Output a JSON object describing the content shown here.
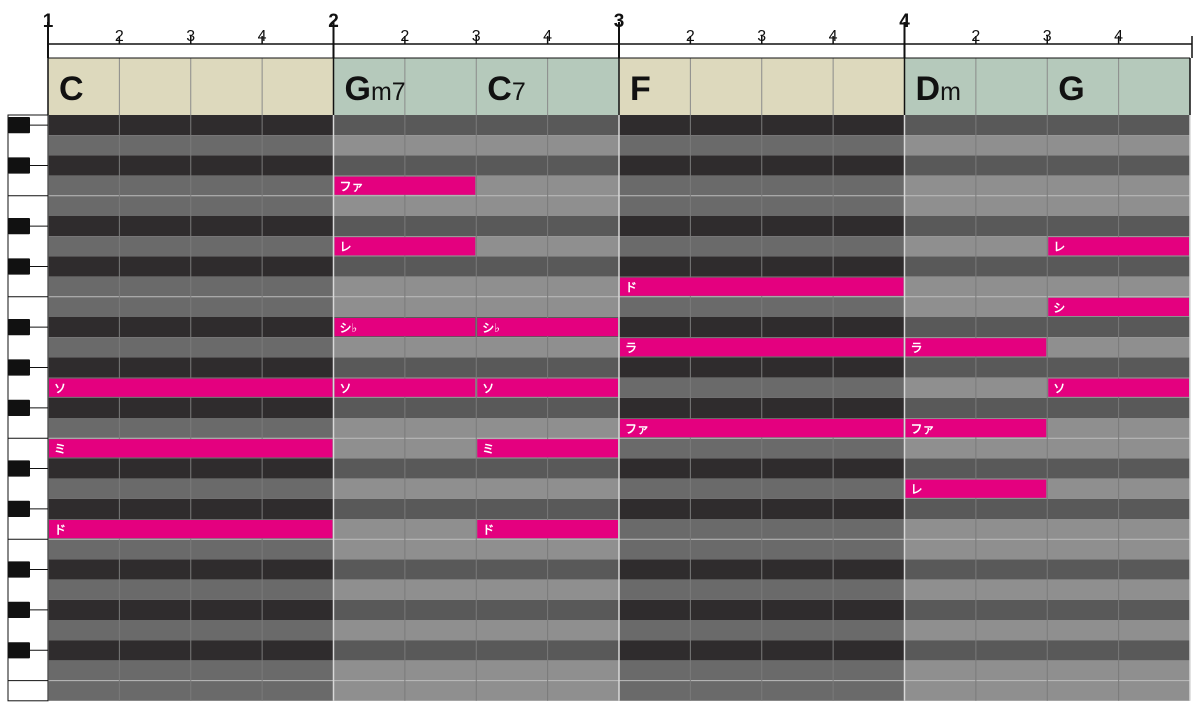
{
  "ruler": {
    "measures": [
      "1",
      "2",
      "3",
      "4"
    ],
    "beats": [
      "2",
      "3",
      "4"
    ]
  },
  "chords": [
    {
      "root": "C",
      "quality": "",
      "start_beat": 0,
      "beats": 4,
      "group": "tonic"
    },
    {
      "root": "G",
      "quality": "m7",
      "start_beat": 4,
      "beats": 2,
      "group": "other"
    },
    {
      "root": "C",
      "quality": "7",
      "start_beat": 6,
      "beats": 2,
      "group": "other"
    },
    {
      "root": "F",
      "quality": "",
      "start_beat": 8,
      "beats": 4,
      "group": "tonic"
    },
    {
      "root": "D",
      "quality": "m",
      "start_beat": 12,
      "beats": 2,
      "group": "other"
    },
    {
      "root": "G",
      "quality": "",
      "start_beat": 14,
      "beats": 2,
      "group": "other"
    }
  ],
  "notes": [
    {
      "label": "ソ",
      "row": 13,
      "start_beat": 0,
      "beats": 4
    },
    {
      "label": "ミ",
      "row": 16,
      "start_beat": 0,
      "beats": 4
    },
    {
      "label": "ド",
      "row": 20,
      "start_beat": 0,
      "beats": 4
    },
    {
      "label": "ファ",
      "row": 3,
      "start_beat": 4,
      "beats": 2
    },
    {
      "label": "レ",
      "row": 6,
      "start_beat": 4,
      "beats": 2
    },
    {
      "label": "シ♭",
      "row": 10,
      "start_beat": 4,
      "beats": 2
    },
    {
      "label": "ソ",
      "row": 13,
      "start_beat": 4,
      "beats": 2
    },
    {
      "label": "シ♭",
      "row": 10,
      "start_beat": 6,
      "beats": 2
    },
    {
      "label": "ソ",
      "row": 13,
      "start_beat": 6,
      "beats": 2
    },
    {
      "label": "ミ",
      "row": 16,
      "start_beat": 6,
      "beats": 2
    },
    {
      "label": "ド",
      "row": 20,
      "start_beat": 6,
      "beats": 2
    },
    {
      "label": "ド",
      "row": 8,
      "start_beat": 8,
      "beats": 4
    },
    {
      "label": "ラ",
      "row": 11,
      "start_beat": 8,
      "beats": 4
    },
    {
      "label": "ファ",
      "row": 15,
      "start_beat": 8,
      "beats": 4
    },
    {
      "label": "ラ",
      "row": 11,
      "start_beat": 12,
      "beats": 2
    },
    {
      "label": "ファ",
      "row": 15,
      "start_beat": 12,
      "beats": 2
    },
    {
      "label": "レ",
      "row": 18,
      "start_beat": 12,
      "beats": 2
    },
    {
      "label": "レ",
      "row": 6,
      "start_beat": 14,
      "beats": 2
    },
    {
      "label": "シ",
      "row": 9,
      "start_beat": 14,
      "beats": 2
    },
    {
      "label": "ソ",
      "row": 13,
      "start_beat": 14,
      "beats": 2
    }
  ],
  "keyboard": {
    "black_key_rows": [
      0,
      2,
      5,
      7,
      10,
      12,
      14,
      17,
      19,
      22,
      24,
      26
    ]
  },
  "colors": {
    "note": "#e4007f",
    "tonic_chord_bg": "#ddd9bd",
    "other_chord_bg": "#b5c9bb",
    "dark_row": "#2f2c2d",
    "light_row": "#6a6a6a",
    "dark_row_alt": "#595959",
    "light_row_alt": "#8f8f8f"
  }
}
